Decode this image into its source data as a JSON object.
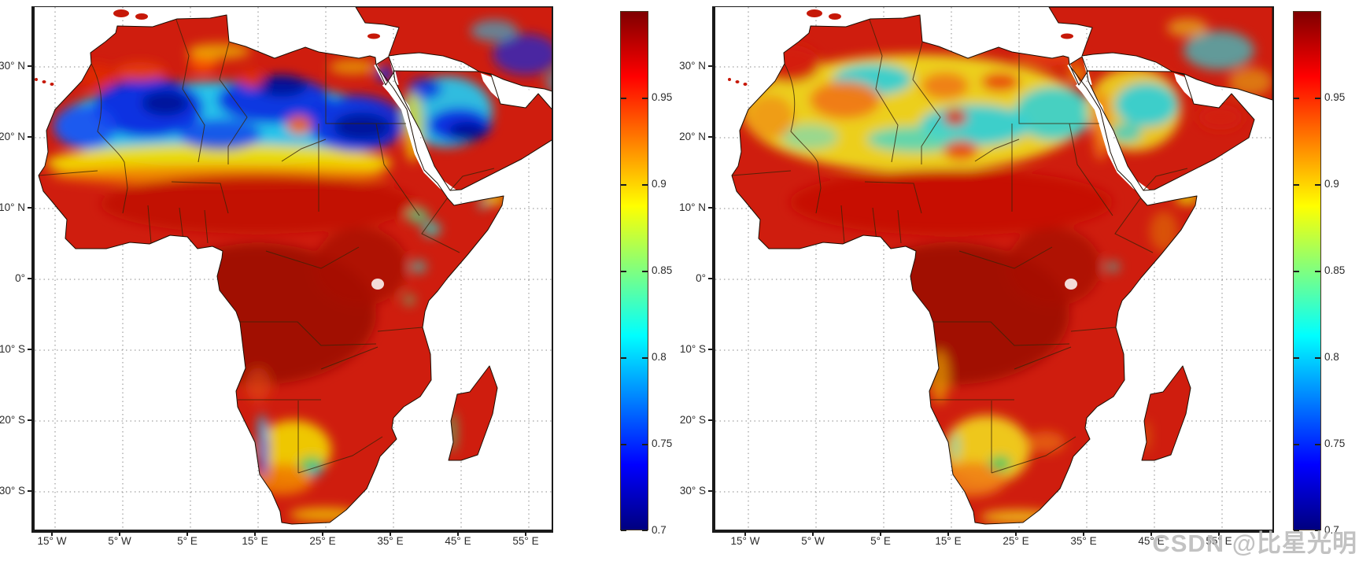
{
  "figure": {
    "panels": [
      {
        "name": "left-map",
        "y_tick_labels": [
          "30° N",
          "20° N",
          "10° N",
          "0°",
          "10° S",
          "20° S",
          "30° S"
        ],
        "x_tick_labels": [
          "15° W",
          "5° W",
          "5° E",
          "15° E",
          "25° E",
          "35° E",
          "45° E",
          "55° E"
        ],
        "colorbar_tick_labels": [
          "0.95",
          "0.9",
          "0.85",
          "0.8",
          "0.75",
          "0.7"
        ]
      },
      {
        "name": "right-map",
        "y_tick_labels": [
          "30° N",
          "20° N",
          "10° N",
          "0°",
          "10° S",
          "20° S",
          "30° S"
        ],
        "x_tick_labels": [
          "15° W",
          "5° W",
          "5° E",
          "15° E",
          "25° E",
          "35° E",
          "45° E",
          "55° E"
        ],
        "colorbar_tick_labels": [
          "0.95",
          "0.9",
          "0.85",
          "0.8",
          "0.75",
          "0.7"
        ]
      }
    ],
    "watermark": "CSDN @比星光明"
  },
  "colors": {
    "sea": "#ffffff",
    "land_base": "#cf1d0e",
    "jet_stops_top_to_bottom": [
      "#7f0000",
      "#ff0000",
      "#ffff00",
      "#00ffff",
      "#0000ff",
      "#00007f"
    ],
    "gridline": "#8a8a8a",
    "border_line": "#3a2408"
  },
  "chart_data": [
    {
      "type": "heatmap",
      "region": "Africa and Arabian Peninsula",
      "x_ticks": [
        "15° W",
        "5° W",
        "5° E",
        "15° E",
        "25° E",
        "35° E",
        "45° E",
        "55° E"
      ],
      "y_ticks": [
        "30° N",
        "20° N",
        "10° N",
        "0°",
        "10° S",
        "20° S",
        "30° S"
      ],
      "lon_range_deg": [
        -18,
        60
      ],
      "lat_range_deg": [
        -35,
        38.5
      ],
      "grid": "dotted",
      "colorbar": {
        "position": "right",
        "min": 0.7,
        "max": 1.0,
        "tick_values": [
          0.95,
          0.9,
          0.85,
          0.8,
          0.75,
          0.7
        ]
      },
      "values_by_region": [
        {
          "region": "Sahara Desert core",
          "value_range": [
            0.7,
            0.8
          ],
          "color": "blue/cyan"
        },
        {
          "region": "Arabian Peninsula interior (Empty Quarter)",
          "value_range": [
            0.7,
            0.78
          ],
          "color": "dark blue"
        },
        {
          "region": "Sahel transition band (~15-17N)",
          "value_range": [
            0.85,
            0.92
          ],
          "color": "yellow/orange"
        },
        {
          "region": "Mediterranean coast / Atlas",
          "value_range": [
            0.92,
            0.97
          ],
          "color": "red"
        },
        {
          "region": "Sub-Saharan vegetated Africa",
          "value_range": [
            0.95,
            1.0
          ],
          "color": "dark red"
        },
        {
          "region": "Namibia / Kalahari",
          "value_range": [
            0.83,
            0.92
          ],
          "color": "yellow with blue coastal streak"
        },
        {
          "region": "Madagascar",
          "value_range": [
            0.95,
            1.0
          ],
          "color": "dark red"
        }
      ]
    },
    {
      "type": "heatmap",
      "region": "Africa and Arabian Peninsula",
      "x_ticks": [
        "15° W",
        "5° W",
        "5° E",
        "15° E",
        "25° E",
        "35° E",
        "45° E",
        "55° E"
      ],
      "y_ticks": [
        "30° N",
        "20° N",
        "10° N",
        "0°",
        "10° S",
        "20° S",
        "30° S"
      ],
      "lon_range_deg": [
        -20,
        62
      ],
      "lat_range_deg": [
        -35,
        38.5
      ],
      "grid": "dotted",
      "colorbar": {
        "position": "right",
        "min": 0.7,
        "max": 1.0,
        "tick_values": [
          0.95,
          0.9,
          0.85,
          0.8,
          0.75,
          0.7
        ]
      },
      "values_by_region": [
        {
          "region": "Sahara Desert core",
          "value_range": [
            0.82,
            0.9
          ],
          "color": "cyan/yellow"
        },
        {
          "region": "Sahara margins",
          "value_range": [
            0.9,
            0.94
          ],
          "color": "orange"
        },
        {
          "region": "Arabian Peninsula interior",
          "value_range": [
            0.82,
            0.88
          ],
          "color": "cyan/yellow"
        },
        {
          "region": "Mediterranean coast / Atlas",
          "value_range": [
            0.93,
            0.97
          ],
          "color": "red"
        },
        {
          "region": "Sub-Saharan vegetated Africa",
          "value_range": [
            0.95,
            1.0
          ],
          "color": "dark red"
        },
        {
          "region": "Namibia / Kalahari",
          "value_range": [
            0.85,
            0.93
          ],
          "color": "yellow/orange"
        },
        {
          "region": "Madagascar",
          "value_range": [
            0.95,
            1.0
          ],
          "color": "dark red"
        }
      ]
    }
  ]
}
